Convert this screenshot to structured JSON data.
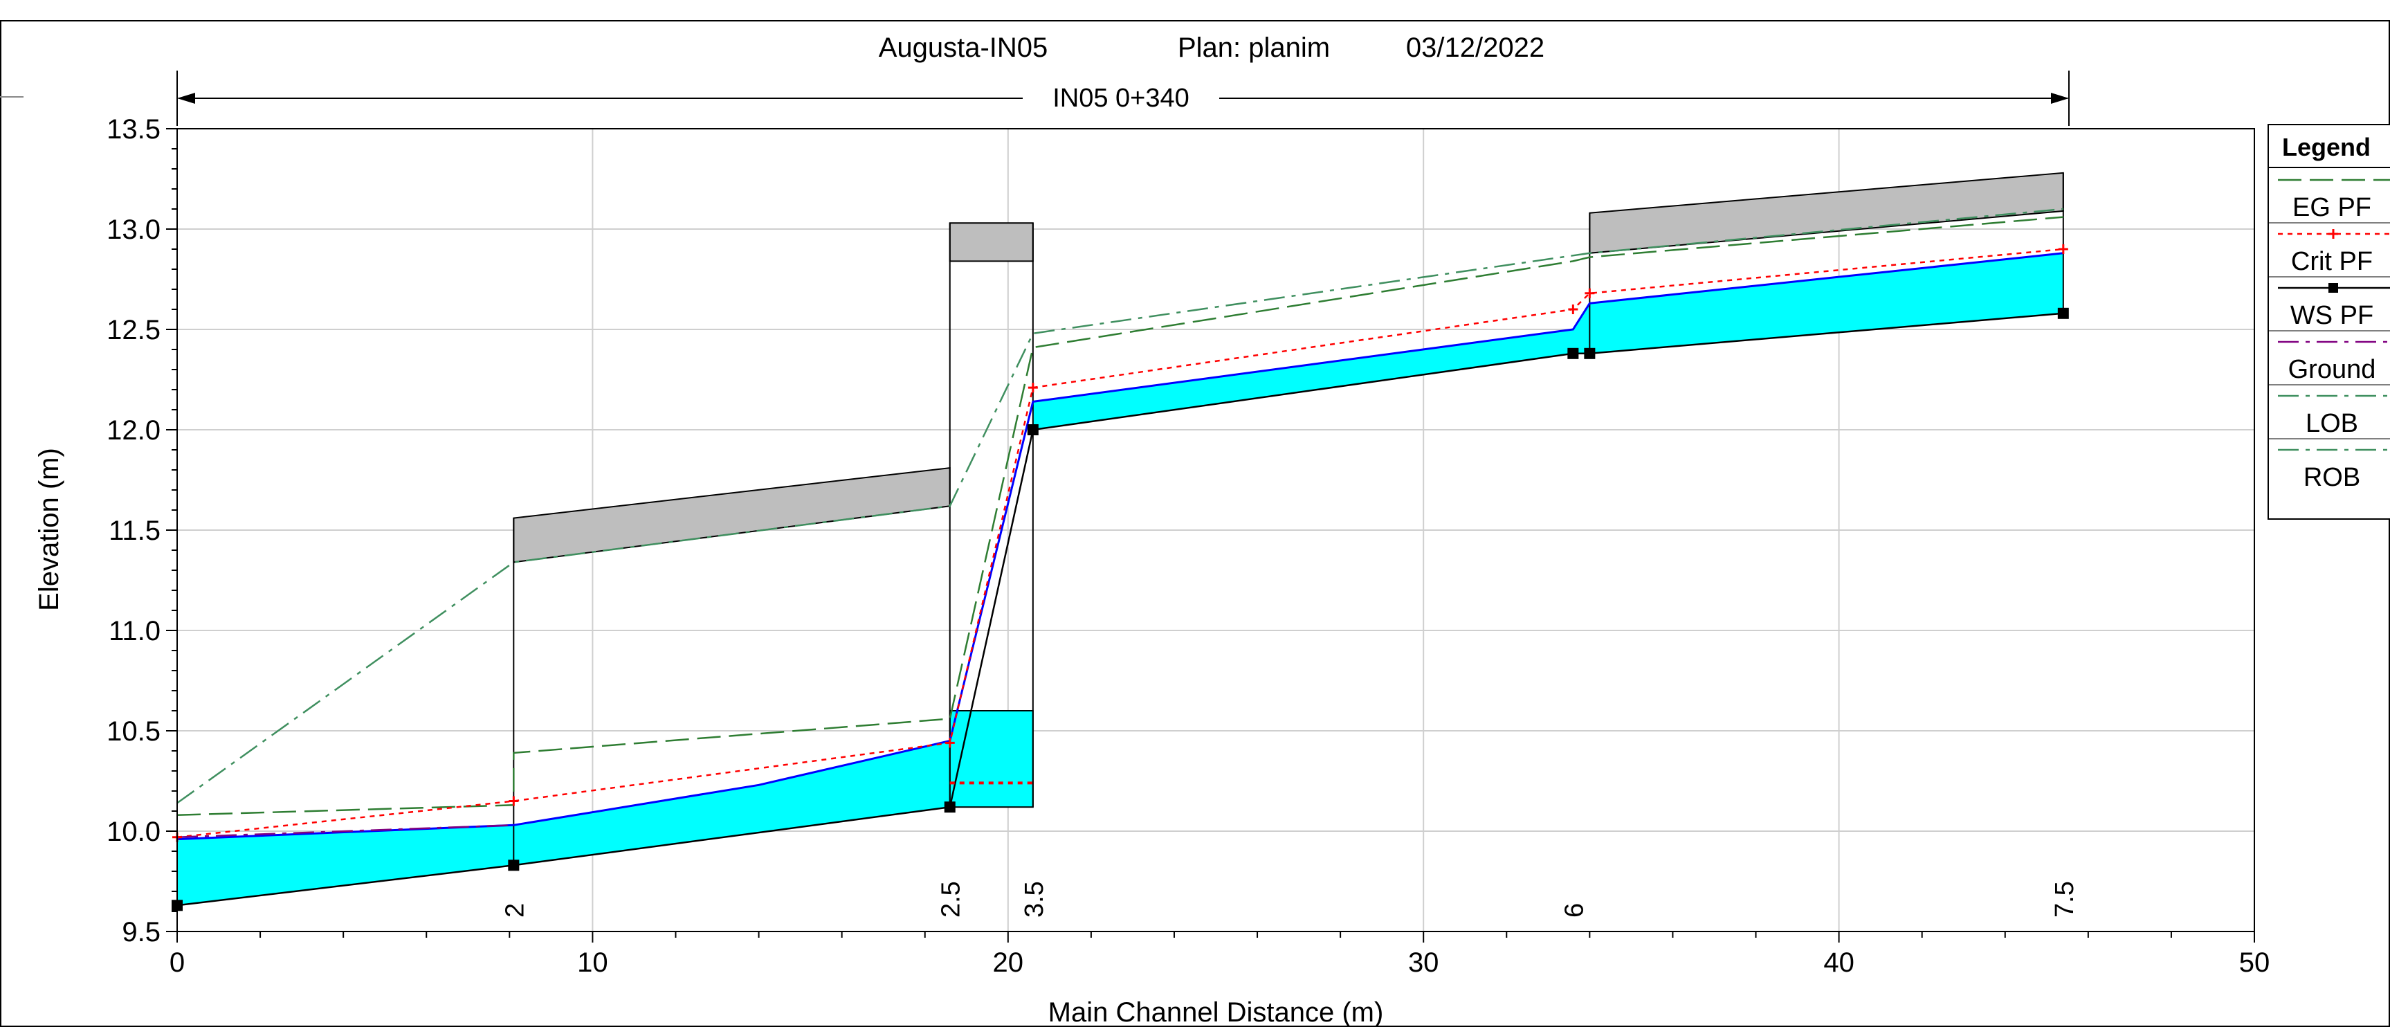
{
  "chart_data": {
    "type": "line",
    "title": {
      "project": "Augusta-IN05",
      "plan": "Plan: planim",
      "date": "03/12/2022"
    },
    "reach_label": "IN05 0+340",
    "xlabel": "Main Channel Distance (m)",
    "ylabel": "Elevation (m)",
    "xlim": [
      0,
      50
    ],
    "ylim": [
      9.5,
      13.5
    ],
    "xticks": [
      "0",
      "10",
      "20",
      "30",
      "40",
      "50"
    ],
    "yticks": [
      "9.5",
      "10.0",
      "10.5",
      "11.0",
      "11.5",
      "12.0",
      "12.5",
      "13.0",
      "13.5"
    ],
    "grid": true,
    "legend": {
      "title": "Legend",
      "placement": "right",
      "entries": [
        "EG PF",
        "Crit PF",
        "WS PF",
        "Ground",
        "LOB",
        "ROB"
      ]
    },
    "station_labels": [
      {
        "label": "2",
        "x": 8.1
      },
      {
        "label": "2.5",
        "x": 18.6
      },
      {
        "label": "3.5",
        "x": 20.6
      },
      {
        "label": "6",
        "x": 33.6
      },
      {
        "label": "7.5",
        "x": 45.4
      }
    ],
    "series": [
      {
        "name": "Ground",
        "color": "#000000",
        "dash": "solid",
        "x": [
          0,
          8.1,
          18.6,
          20.6,
          33.6,
          34.0,
          45.4
        ],
        "y": [
          9.63,
          9.83,
          10.12,
          12.0,
          12.38,
          12.38,
          12.58
        ]
      },
      {
        "name": "WS PF",
        "color": "#0000ff",
        "dash": "solid",
        "x": [
          0,
          8.1,
          14,
          18.6,
          20.6,
          33.6,
          34.0,
          45.4
        ],
        "y": [
          9.96,
          10.03,
          10.23,
          10.45,
          12.14,
          12.5,
          12.63,
          12.88
        ]
      },
      {
        "name": "EG PF",
        "color": "#2e7d32",
        "dash": "long",
        "x": [
          0,
          8.1,
          8.1,
          18.6,
          20.6,
          33.6,
          34.0,
          45.4
        ],
        "y": [
          10.08,
          10.13,
          10.39,
          10.56,
          12.41,
          12.84,
          12.86,
          13.06
        ]
      },
      {
        "name": "Crit PF",
        "color": "#ff0000",
        "dash": "dot",
        "x": [
          0,
          8.1,
          18.6,
          20.6,
          33.6,
          34.0,
          45.4
        ],
        "y": [
          9.97,
          10.15,
          10.44,
          12.21,
          12.6,
          12.68,
          12.9
        ]
      },
      {
        "name": "LOB",
        "color": "#800080",
        "dash": "dashdot",
        "x": [
          0,
          8.1
        ],
        "y": [
          9.97,
          10.03
        ]
      },
      {
        "name": "ROB",
        "color": "#3f8f5f",
        "dash": "dashdot",
        "x": [
          0,
          8.1,
          18.6,
          20.6,
          34.0,
          45.4
        ],
        "y": [
          10.14,
          11.34,
          11.62,
          12.48,
          12.88,
          13.1
        ]
      }
    ],
    "culvert_deck": [
      {
        "x": [
          8.1,
          18.6
        ],
        "top": [
          11.56,
          11.81
        ],
        "bottom": [
          11.34,
          11.62
        ]
      },
      {
        "x": [
          18.6,
          20.6
        ],
        "top": [
          13.03,
          13.03
        ],
        "bottom": [
          12.84,
          12.84
        ]
      },
      {
        "x": [
          34.0,
          45.4
        ],
        "top": [
          13.08,
          13.28
        ],
        "bottom": [
          12.88,
          13.09
        ]
      }
    ],
    "culvert_water": {
      "x": [
        18.6,
        20.6
      ],
      "top": 10.6,
      "bottom": 10.12
    },
    "culvert_crit": {
      "x": [
        18.6,
        20.6
      ],
      "y": 10.24
    }
  }
}
